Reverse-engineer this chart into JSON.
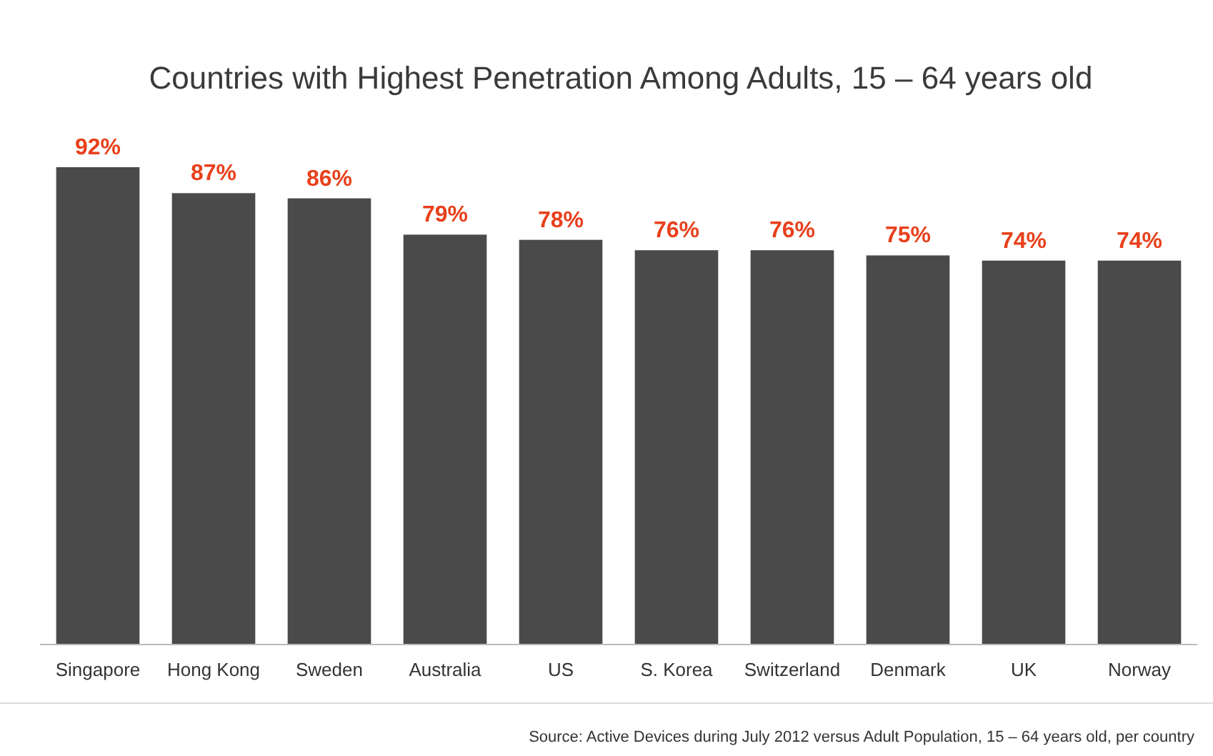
{
  "chart_data": {
    "type": "bar",
    "title": "Countries with Highest Penetration Among Adults, 15 – 64 years old",
    "categories": [
      "Singapore",
      "Hong Kong",
      "Sweden",
      "Australia",
      "US",
      "S. Korea",
      "Switzerland",
      "Denmark",
      "UK",
      "Norway"
    ],
    "values": [
      92,
      87,
      86,
      79,
      78,
      76,
      76,
      75,
      74,
      74
    ],
    "value_labels": [
      "92%",
      "87%",
      "86%",
      "79%",
      "78%",
      "76%",
      "76%",
      "75%",
      "74%",
      "74%"
    ],
    "color": "#4a4a4a",
    "annotations": [
      "Source: Active Devices during July 2012 versus Adult Population, 15 – 64 years old, per country"
    ]
  }
}
